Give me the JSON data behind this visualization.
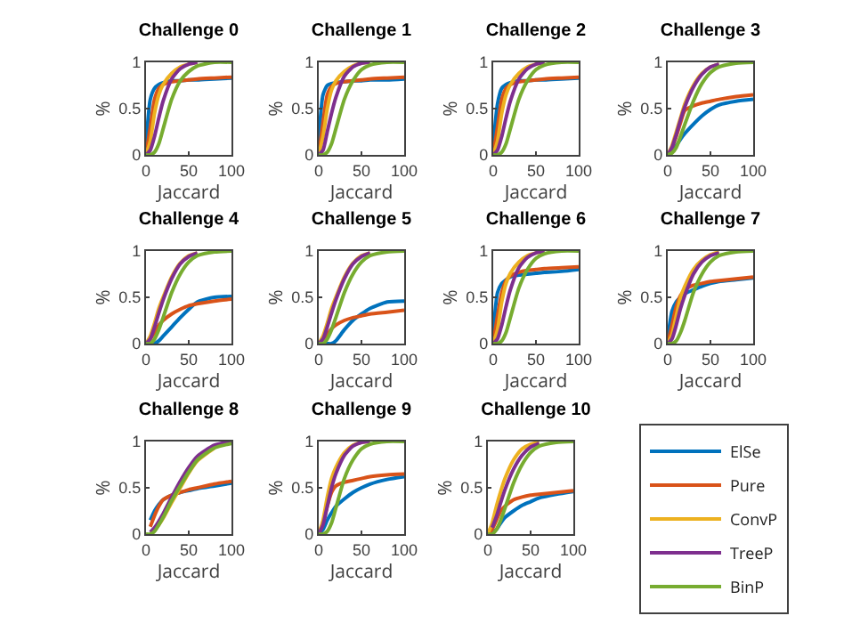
{
  "chart_data": [
    {
      "type": "line",
      "title": "Challenge 0",
      "xlabel": "Jaccard",
      "ylabel": "%",
      "xlim": [
        0,
        100
      ],
      "ylim": [
        0,
        1
      ],
      "xticks": [
        0,
        50,
        100
      ],
      "yticks": [
        0,
        0.5,
        1
      ],
      "grid": false,
      "legend": false,
      "marker": "none",
      "x": [
        0,
        5,
        10,
        15,
        20,
        30,
        40,
        50,
        60,
        80,
        100
      ],
      "series": [
        {
          "color": "#0072bd",
          "values": [
            0.1,
            0.6,
            0.72,
            0.76,
            0.78,
            0.8,
            0.8,
            0.81,
            0.81,
            0.82,
            0.83
          ]
        },
        {
          "color": "#d95319",
          "values": [
            0,
            0.3,
            0.6,
            0.72,
            0.76,
            0.79,
            0.8,
            0.81,
            0.82,
            0.83,
            0.84
          ]
        },
        {
          "color": "#edb120",
          "values": [
            0,
            0.15,
            0.45,
            0.65,
            0.76,
            0.88,
            0.95,
            0.98,
            1,
            null,
            null
          ]
        },
        {
          "color": "#7e2f8e",
          "values": [
            0,
            0.05,
            0.2,
            0.4,
            0.58,
            0.82,
            0.93,
            0.98,
            1,
            null,
            null
          ]
        },
        {
          "color": "#77ac30",
          "values": [
            0,
            0,
            0.03,
            0.12,
            0.28,
            0.6,
            0.8,
            0.9,
            0.96,
            1,
            1
          ]
        }
      ]
    },
    {
      "type": "line",
      "title": "Challenge 1",
      "xlabel": "Jaccard",
      "ylabel": "%",
      "xlim": [
        0,
        100
      ],
      "ylim": [
        0,
        1
      ],
      "xticks": [
        0,
        50,
        100
      ],
      "yticks": [
        0,
        0.5,
        1
      ],
      "grid": false,
      "legend": false,
      "marker": "none",
      "x": [
        0,
        5,
        10,
        15,
        20,
        30,
        40,
        50,
        60,
        80,
        100
      ],
      "series": [
        {
          "color": "#0072bd",
          "values": [
            0.15,
            0.65,
            0.75,
            0.77,
            0.78,
            0.79,
            0.8,
            0.8,
            0.81,
            0.81,
            0.82
          ]
        },
        {
          "color": "#d95319",
          "values": [
            0,
            0.35,
            0.65,
            0.74,
            0.77,
            0.79,
            0.8,
            0.81,
            0.82,
            0.83,
            0.84
          ]
        },
        {
          "color": "#edb120",
          "values": [
            0,
            0.2,
            0.5,
            0.7,
            0.8,
            0.9,
            0.96,
            0.99,
            1,
            null,
            null
          ]
        },
        {
          "color": "#7e2f8e",
          "values": [
            0,
            0.05,
            0.25,
            0.45,
            0.62,
            0.85,
            0.95,
            0.99,
            1,
            null,
            null
          ]
        },
        {
          "color": "#77ac30",
          "values": [
            0,
            0,
            0.03,
            0.12,
            0.28,
            0.6,
            0.8,
            0.92,
            0.97,
            1,
            1
          ]
        }
      ]
    },
    {
      "type": "line",
      "title": "Challenge 2",
      "xlabel": "Jaccard",
      "ylabel": "%",
      "xlim": [
        0,
        100
      ],
      "ylim": [
        0,
        1
      ],
      "xticks": [
        0,
        50,
        100
      ],
      "yticks": [
        0,
        0.5,
        1
      ],
      "grid": false,
      "legend": false,
      "marker": "none",
      "x": [
        0,
        5,
        10,
        15,
        20,
        30,
        40,
        50,
        60,
        80,
        100
      ],
      "series": [
        {
          "color": "#0072bd",
          "values": [
            0.1,
            0.55,
            0.72,
            0.76,
            0.78,
            0.8,
            0.8,
            0.81,
            0.81,
            0.82,
            0.83
          ]
        },
        {
          "color": "#d95319",
          "values": [
            0,
            0.3,
            0.6,
            0.72,
            0.76,
            0.79,
            0.8,
            0.81,
            0.82,
            0.83,
            0.84
          ]
        },
        {
          "color": "#edb120",
          "values": [
            0,
            0.15,
            0.45,
            0.65,
            0.76,
            0.88,
            0.95,
            0.98,
            1,
            null,
            null
          ]
        },
        {
          "color": "#7e2f8e",
          "values": [
            0,
            0.05,
            0.2,
            0.4,
            0.58,
            0.82,
            0.93,
            0.98,
            1,
            null,
            null
          ]
        },
        {
          "color": "#77ac30",
          "values": [
            0,
            0,
            0.03,
            0.12,
            0.28,
            0.6,
            0.8,
            0.92,
            0.97,
            1,
            1
          ]
        }
      ]
    },
    {
      "type": "line",
      "title": "Challenge 3",
      "xlabel": "Jaccard",
      "ylabel": "%",
      "xlim": [
        0,
        100
      ],
      "ylim": [
        0,
        1
      ],
      "xticks": [
        0,
        50,
        100
      ],
      "yticks": [
        0,
        0.5,
        1
      ],
      "grid": false,
      "legend": false,
      "marker": "none",
      "x": [
        0,
        5,
        10,
        15,
        20,
        30,
        40,
        50,
        60,
        80,
        100
      ],
      "series": [
        {
          "color": "#0072bd",
          "values": [
            0,
            0.03,
            0.1,
            0.17,
            0.23,
            0.33,
            0.42,
            0.49,
            0.54,
            0.58,
            0.6
          ]
        },
        {
          "color": "#d95319",
          "values": [
            0,
            0.08,
            0.2,
            0.35,
            0.48,
            0.53,
            0.56,
            0.58,
            0.6,
            0.63,
            0.65
          ]
        },
        {
          "color": "#edb120",
          "values": [
            0,
            0.1,
            0.25,
            0.4,
            0.55,
            0.75,
            0.88,
            0.95,
            0.98,
            null,
            null
          ]
        },
        {
          "color": "#7e2f8e",
          "values": [
            0,
            0.08,
            0.22,
            0.38,
            0.52,
            0.73,
            0.87,
            0.95,
            0.98,
            null,
            null
          ]
        },
        {
          "color": "#77ac30",
          "values": [
            0,
            0.02,
            0.08,
            0.2,
            0.33,
            0.58,
            0.77,
            0.89,
            0.95,
            0.99,
            1
          ]
        }
      ]
    },
    {
      "type": "line",
      "title": "Challenge 4",
      "xlabel": "Jaccard",
      "ylabel": "%",
      "xlim": [
        0,
        100
      ],
      "ylim": [
        0,
        1
      ],
      "xticks": [
        0,
        50,
        100
      ],
      "yticks": [
        0,
        0.5,
        1
      ],
      "grid": false,
      "legend": false,
      "marker": "none",
      "x": [
        0,
        5,
        10,
        15,
        20,
        30,
        40,
        50,
        60,
        80,
        100
      ],
      "series": [
        {
          "color": "#0072bd",
          "values": [
            0,
            0,
            0,
            0.03,
            0.08,
            0.18,
            0.28,
            0.37,
            0.45,
            0.5,
            0.51
          ]
        },
        {
          "color": "#d95319",
          "values": [
            0,
            0.05,
            0.12,
            0.2,
            0.25,
            0.32,
            0.37,
            0.41,
            0.43,
            0.46,
            0.48
          ]
        },
        {
          "color": "#edb120",
          "values": [
            0,
            0.08,
            0.22,
            0.38,
            0.5,
            0.72,
            0.87,
            0.95,
            0.98,
            null,
            null
          ]
        },
        {
          "color": "#7e2f8e",
          "values": [
            0,
            0.05,
            0.18,
            0.33,
            0.47,
            0.7,
            0.86,
            0.94,
            0.98,
            null,
            null
          ]
        },
        {
          "color": "#77ac30",
          "values": [
            0,
            0,
            0.05,
            0.15,
            0.28,
            0.55,
            0.75,
            0.88,
            0.95,
            0.99,
            1
          ]
        }
      ]
    },
    {
      "type": "line",
      "title": "Challenge 5",
      "xlabel": "Jaccard",
      "ylabel": "%",
      "xlim": [
        0,
        100
      ],
      "ylim": [
        0,
        1
      ],
      "xticks": [
        0,
        50,
        100
      ],
      "yticks": [
        0,
        0.5,
        1
      ],
      "grid": false,
      "legend": false,
      "marker": "none",
      "x": [
        0,
        5,
        10,
        15,
        20,
        30,
        40,
        50,
        60,
        80,
        100
      ],
      "series": [
        {
          "color": "#0072bd",
          "values": [
            0,
            0,
            0,
            0,
            0.03,
            0.15,
            0.25,
            0.32,
            0.38,
            0.45,
            0.46
          ]
        },
        {
          "color": "#d95319",
          "values": [
            0,
            0.05,
            0.1,
            0.16,
            0.2,
            0.25,
            0.28,
            0.3,
            0.32,
            0.34,
            0.36
          ]
        },
        {
          "color": "#edb120",
          "values": [
            0,
            0.08,
            0.22,
            0.38,
            0.5,
            0.72,
            0.87,
            0.95,
            0.98,
            null,
            null
          ]
        },
        {
          "color": "#7e2f8e",
          "values": [
            0,
            0.05,
            0.18,
            0.33,
            0.47,
            0.7,
            0.86,
            0.94,
            0.98,
            null,
            null
          ]
        },
        {
          "color": "#77ac30",
          "values": [
            0,
            0,
            0.05,
            0.15,
            0.28,
            0.55,
            0.75,
            0.88,
            0.95,
            0.99,
            1
          ]
        }
      ]
    },
    {
      "type": "line",
      "title": "Challenge 6",
      "xlabel": "Jaccard",
      "ylabel": "%",
      "xlim": [
        0,
        100
      ],
      "ylim": [
        0,
        1
      ],
      "xticks": [
        0,
        50,
        100
      ],
      "yticks": [
        0,
        0.5,
        1
      ],
      "grid": false,
      "legend": false,
      "marker": "none",
      "x": [
        0,
        5,
        10,
        15,
        20,
        30,
        40,
        50,
        60,
        80,
        100
      ],
      "series": [
        {
          "color": "#0072bd",
          "values": [
            0.1,
            0.55,
            0.65,
            0.69,
            0.72,
            0.74,
            0.75,
            0.76,
            0.77,
            0.78,
            0.8
          ]
        },
        {
          "color": "#d95319",
          "values": [
            0,
            0.3,
            0.55,
            0.68,
            0.73,
            0.77,
            0.79,
            0.8,
            0.81,
            0.82,
            0.83
          ]
        },
        {
          "color": "#edb120",
          "values": [
            0,
            0.15,
            0.45,
            0.65,
            0.76,
            0.88,
            0.95,
            0.98,
            1,
            null,
            null
          ]
        },
        {
          "color": "#7e2f8e",
          "values": [
            0,
            0.05,
            0.2,
            0.4,
            0.58,
            0.82,
            0.93,
            0.98,
            1,
            null,
            null
          ]
        },
        {
          "color": "#77ac30",
          "values": [
            0,
            0,
            0.03,
            0.12,
            0.28,
            0.6,
            0.8,
            0.92,
            0.97,
            1,
            1
          ]
        }
      ]
    },
    {
      "type": "line",
      "title": "Challenge 7",
      "xlabel": "Jaccard",
      "ylabel": "%",
      "xlim": [
        0,
        100
      ],
      "ylim": [
        0,
        1
      ],
      "xticks": [
        0,
        50,
        100
      ],
      "yticks": [
        0,
        0.5,
        1
      ],
      "grid": false,
      "legend": false,
      "marker": "none",
      "x": [
        0,
        5,
        10,
        15,
        20,
        30,
        40,
        50,
        60,
        80,
        100
      ],
      "series": [
        {
          "color": "#0072bd",
          "values": [
            0.05,
            0.35,
            0.45,
            0.5,
            0.54,
            0.58,
            0.62,
            0.65,
            0.67,
            0.69,
            0.71
          ]
        },
        {
          "color": "#d95319",
          "values": [
            0,
            0.2,
            0.4,
            0.52,
            0.58,
            0.63,
            0.65,
            0.67,
            0.68,
            0.7,
            0.72
          ]
        },
        {
          "color": "#edb120",
          "values": [
            0,
            0.1,
            0.3,
            0.5,
            0.62,
            0.8,
            0.9,
            0.96,
            0.99,
            null,
            null
          ]
        },
        {
          "color": "#7e2f8e",
          "values": [
            0,
            0.05,
            0.2,
            0.38,
            0.52,
            0.75,
            0.88,
            0.95,
            0.98,
            null,
            null
          ]
        },
        {
          "color": "#77ac30",
          "values": [
            0,
            0,
            0.03,
            0.12,
            0.25,
            0.55,
            0.75,
            0.88,
            0.95,
            0.99,
            1
          ]
        }
      ]
    },
    {
      "type": "line",
      "title": "Challenge 8",
      "xlabel": "Jaccard",
      "ylabel": "%",
      "xlim": [
        0,
        100
      ],
      "ylim": [
        0,
        1
      ],
      "xticks": [
        0,
        50,
        100
      ],
      "yticks": [
        0,
        0.5,
        1
      ],
      "grid": false,
      "legend": false,
      "marker": "none",
      "x": [
        0,
        5,
        10,
        15,
        20,
        30,
        40,
        50,
        60,
        80,
        100
      ],
      "series": [
        {
          "color": "#0072bd",
          "values": [
            null,
            0.15,
            0.25,
            0.32,
            0.37,
            0.42,
            0.45,
            0.47,
            0.49,
            0.52,
            0.55
          ]
        },
        {
          "color": "#d95319",
          "values": [
            null,
            0.08,
            0.2,
            0.3,
            0.37,
            0.42,
            0.45,
            0.48,
            0.5,
            0.54,
            0.57
          ]
        },
        {
          "color": "#edb120",
          "values": [
            null,
            null,
            0.04,
            0.1,
            0.17,
            0.34,
            0.5,
            0.66,
            0.79,
            0.93,
            null
          ]
        },
        {
          "color": "#7e2f8e",
          "values": [
            null,
            0.02,
            0.07,
            0.14,
            0.22,
            0.4,
            0.57,
            0.72,
            0.84,
            0.96,
            1
          ]
        },
        {
          "color": "#77ac30",
          "values": [
            0,
            0,
            0.03,
            0.1,
            0.18,
            0.36,
            0.52,
            0.67,
            0.8,
            0.93,
            0.98
          ]
        }
      ]
    },
    {
      "type": "line",
      "title": "Challenge 9",
      "xlabel": "Jaccard",
      "ylabel": "%",
      "xlim": [
        0,
        100
      ],
      "ylim": [
        0,
        1
      ],
      "xticks": [
        0,
        50,
        100
      ],
      "yticks": [
        0,
        0.5,
        1
      ],
      "grid": false,
      "legend": false,
      "marker": "none",
      "x": [
        0,
        5,
        10,
        15,
        20,
        30,
        40,
        50,
        60,
        80,
        100
      ],
      "series": [
        {
          "color": "#0072bd",
          "values": [
            0,
            0.05,
            0.15,
            0.23,
            0.3,
            0.38,
            0.45,
            0.5,
            0.54,
            0.59,
            0.62
          ]
        },
        {
          "color": "#d95319",
          "values": [
            0,
            0.12,
            0.3,
            0.45,
            0.52,
            0.56,
            0.58,
            0.6,
            0.62,
            0.64,
            0.65
          ]
        },
        {
          "color": "#edb120",
          "values": [
            0,
            0.15,
            0.4,
            0.6,
            0.72,
            0.88,
            0.96,
            0.99,
            1,
            null,
            null
          ]
        },
        {
          "color": "#7e2f8e",
          "values": [
            0,
            0.1,
            0.3,
            0.5,
            0.65,
            0.85,
            0.95,
            0.99,
            1,
            null,
            null
          ]
        },
        {
          "color": "#77ac30",
          "values": [
            0,
            0,
            0.03,
            0.12,
            0.28,
            0.6,
            0.8,
            0.92,
            0.97,
            1,
            1
          ]
        }
      ]
    },
    {
      "type": "line",
      "title": "Challenge 10",
      "xlabel": "Jaccard",
      "ylabel": "%",
      "xlim": [
        0,
        100
      ],
      "ylim": [
        0,
        1
      ],
      "xticks": [
        0,
        50,
        100
      ],
      "yticks": [
        0,
        0.5,
        1
      ],
      "grid": false,
      "legend": "right",
      "marker": "none",
      "x": [
        0,
        5,
        10,
        15,
        20,
        30,
        40,
        50,
        60,
        80,
        100
      ],
      "series": [
        {
          "name": "ElSe",
          "color": "#0072bd",
          "values": [
            0,
            0.02,
            0.05,
            0.12,
            0.18,
            0.25,
            0.31,
            0.35,
            0.39,
            0.43,
            0.46
          ]
        },
        {
          "name": "Pure",
          "color": "#d95319",
          "values": [
            0,
            0.05,
            0.15,
            0.25,
            0.3,
            0.37,
            0.4,
            0.42,
            0.43,
            0.45,
            0.47
          ]
        },
        {
          "name": "ConvP",
          "color": "#edb120",
          "values": [
            0,
            0.12,
            0.3,
            0.46,
            0.6,
            0.8,
            0.92,
            0.97,
            0.99,
            null,
            null
          ]
        },
        {
          "name": "TreeP",
          "color": "#7e2f8e",
          "values": [
            null,
            0.07,
            0.19,
            0.34,
            0.48,
            0.7,
            0.85,
            0.94,
            0.98,
            null,
            null
          ]
        },
        {
          "name": "BinP",
          "color": "#77ac30",
          "values": [
            0,
            0,
            0.05,
            0.15,
            0.28,
            0.55,
            0.75,
            0.88,
            0.95,
            0.99,
            1
          ]
        }
      ]
    }
  ]
}
